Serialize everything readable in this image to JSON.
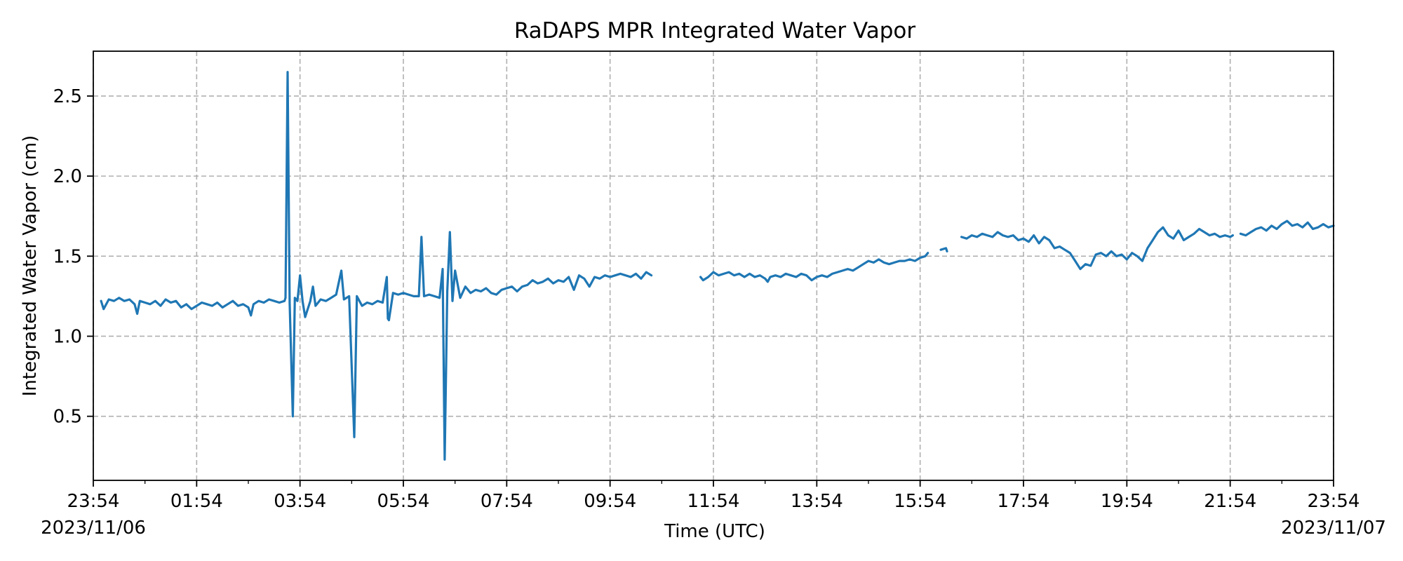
{
  "chart_data": {
    "type": "line",
    "title": "RaDAPS MPR Integrated Water Vapor",
    "xlabel": "Time (UTC)",
    "ylabel": "Integrated Water Vapor (cm)",
    "x_unit": "hours",
    "xlim": [
      0,
      24
    ],
    "ylim": [
      0.1,
      2.78
    ],
    "x_ticks": [
      {
        "value": 0,
        "label": "23:54",
        "sublabel": "2023/11/06"
      },
      {
        "value": 2,
        "label": "01:54"
      },
      {
        "value": 4,
        "label": "03:54"
      },
      {
        "value": 6,
        "label": "05:54"
      },
      {
        "value": 8,
        "label": "07:54"
      },
      {
        "value": 10,
        "label": "09:54"
      },
      {
        "value": 12,
        "label": "11:54"
      },
      {
        "value": 14,
        "label": "13:54"
      },
      {
        "value": 16,
        "label": "15:54"
      },
      {
        "value": 18,
        "label": "17:54"
      },
      {
        "value": 20,
        "label": "19:54"
      },
      {
        "value": 22,
        "label": "21:54"
      },
      {
        "value": 24,
        "label": "23:54",
        "sublabel": "2023/11/07"
      }
    ],
    "x_minor_ticks": [
      1,
      3,
      5,
      7,
      9,
      11,
      13,
      15,
      17,
      19,
      21,
      23
    ],
    "y_ticks": [
      {
        "value": 0.5,
        "label": "0.5"
      },
      {
        "value": 1.0,
        "label": "1.0"
      },
      {
        "value": 1.5,
        "label": "1.5"
      },
      {
        "value": 2.0,
        "label": "2.0"
      },
      {
        "value": 2.5,
        "label": "2.5"
      }
    ],
    "grid": true,
    "series": [
      {
        "color": "#1f77b4",
        "segments": [
          [
            [
              0.15,
              1.22
            ],
            [
              0.2,
              1.17
            ],
            [
              0.3,
              1.23
            ],
            [
              0.4,
              1.22
            ],
            [
              0.5,
              1.24
            ],
            [
              0.6,
              1.22
            ],
            [
              0.7,
              1.23
            ],
            [
              0.8,
              1.2
            ],
            [
              0.85,
              1.14
            ],
            [
              0.9,
              1.22
            ],
            [
              1.0,
              1.21
            ],
            [
              1.1,
              1.2
            ],
            [
              1.2,
              1.22
            ],
            [
              1.3,
              1.19
            ],
            [
              1.4,
              1.23
            ],
            [
              1.5,
              1.21
            ],
            [
              1.6,
              1.22
            ],
            [
              1.7,
              1.18
            ],
            [
              1.8,
              1.2
            ],
            [
              1.9,
              1.17
            ],
            [
              2.0,
              1.19
            ],
            [
              2.1,
              1.21
            ],
            [
              2.2,
              1.2
            ],
            [
              2.3,
              1.19
            ],
            [
              2.4,
              1.21
            ],
            [
              2.5,
              1.18
            ],
            [
              2.6,
              1.2
            ],
            [
              2.7,
              1.22
            ],
            [
              2.8,
              1.19
            ],
            [
              2.9,
              1.2
            ],
            [
              3.0,
              1.18
            ],
            [
              3.05,
              1.13
            ],
            [
              3.1,
              1.2
            ],
            [
              3.2,
              1.22
            ],
            [
              3.3,
              1.21
            ],
            [
              3.4,
              1.23
            ],
            [
              3.5,
              1.22
            ],
            [
              3.6,
              1.21
            ],
            [
              3.7,
              1.22
            ],
            [
              3.72,
              1.24
            ],
            [
              3.76,
              2.65
            ],
            [
              3.8,
              1.21
            ],
            [
              3.86,
              0.5
            ],
            [
              3.9,
              1.24
            ],
            [
              3.95,
              1.22
            ],
            [
              4.0,
              1.38
            ],
            [
              4.05,
              1.22
            ],
            [
              4.1,
              1.12
            ],
            [
              4.2,
              1.22
            ],
            [
              4.25,
              1.31
            ],
            [
              4.3,
              1.19
            ],
            [
              4.4,
              1.23
            ],
            [
              4.5,
              1.22
            ],
            [
              4.6,
              1.24
            ],
            [
              4.7,
              1.26
            ],
            [
              4.8,
              1.41
            ],
            [
              4.85,
              1.23
            ],
            [
              4.95,
              1.25
            ],
            [
              5.05,
              0.37
            ],
            [
              5.1,
              1.25
            ],
            [
              5.2,
              1.19
            ],
            [
              5.3,
              1.21
            ],
            [
              5.4,
              1.2
            ],
            [
              5.5,
              1.22
            ],
            [
              5.6,
              1.21
            ],
            [
              5.68,
              1.37
            ],
            [
              5.7,
              1.11
            ],
            [
              5.72,
              1.1
            ],
            [
              5.8,
              1.27
            ],
            [
              5.9,
              1.26
            ],
            [
              6.0,
              1.27
            ],
            [
              6.1,
              1.26
            ],
            [
              6.2,
              1.25
            ],
            [
              6.3,
              1.25
            ],
            [
              6.35,
              1.62
            ],
            [
              6.4,
              1.25
            ],
            [
              6.5,
              1.26
            ],
            [
              6.6,
              1.25
            ],
            [
              6.7,
              1.24
            ],
            [
              6.76,
              1.42
            ],
            [
              6.8,
              0.23
            ],
            [
              6.85,
              1.28
            ],
            [
              6.9,
              1.65
            ],
            [
              6.95,
              1.22
            ],
            [
              7.0,
              1.41
            ],
            [
              7.1,
              1.24
            ],
            [
              7.2,
              1.31
            ],
            [
              7.3,
              1.27
            ],
            [
              7.4,
              1.29
            ],
            [
              7.5,
              1.28
            ],
            [
              7.6,
              1.3
            ],
            [
              7.7,
              1.27
            ],
            [
              7.8,
              1.26
            ],
            [
              7.9,
              1.29
            ],
            [
              8.0,
              1.3
            ],
            [
              8.1,
              1.31
            ],
            [
              8.2,
              1.28
            ],
            [
              8.3,
              1.31
            ],
            [
              8.4,
              1.32
            ],
            [
              8.5,
              1.35
            ],
            [
              8.6,
              1.33
            ],
            [
              8.7,
              1.34
            ],
            [
              8.8,
              1.36
            ],
            [
              8.9,
              1.33
            ],
            [
              9.0,
              1.35
            ],
            [
              9.1,
              1.34
            ],
            [
              9.2,
              1.37
            ],
            [
              9.3,
              1.29
            ],
            [
              9.4,
              1.38
            ],
            [
              9.5,
              1.36
            ],
            [
              9.6,
              1.31
            ],
            [
              9.7,
              1.37
            ],
            [
              9.8,
              1.36
            ],
            [
              9.9,
              1.38
            ],
            [
              10.0,
              1.37
            ],
            [
              10.1,
              1.38
            ],
            [
              10.2,
              1.39
            ],
            [
              10.3,
              1.38
            ],
            [
              10.4,
              1.37
            ],
            [
              10.5,
              1.39
            ],
            [
              10.6,
              1.36
            ],
            [
              10.7,
              1.4
            ],
            [
              10.8,
              1.38
            ]
          ],
          [
            [
              11.75,
              1.37
            ],
            [
              11.8,
              1.35
            ],
            [
              11.9,
              1.37
            ],
            [
              12.0,
              1.4
            ],
            [
              12.1,
              1.38
            ],
            [
              12.2,
              1.39
            ],
            [
              12.3,
              1.4
            ],
            [
              12.4,
              1.38
            ],
            [
              12.5,
              1.39
            ],
            [
              12.6,
              1.37
            ],
            [
              12.7,
              1.39
            ],
            [
              12.8,
              1.37
            ],
            [
              12.9,
              1.38
            ],
            [
              13.0,
              1.36
            ],
            [
              13.05,
              1.34
            ],
            [
              13.1,
              1.37
            ],
            [
              13.2,
              1.38
            ],
            [
              13.3,
              1.37
            ],
            [
              13.4,
              1.39
            ],
            [
              13.5,
              1.38
            ],
            [
              13.6,
              1.37
            ],
            [
              13.7,
              1.39
            ],
            [
              13.8,
              1.38
            ],
            [
              13.9,
              1.35
            ],
            [
              14.0,
              1.37
            ],
            [
              14.1,
              1.38
            ],
            [
              14.2,
              1.37
            ],
            [
              14.3,
              1.39
            ],
            [
              14.4,
              1.4
            ],
            [
              14.5,
              1.41
            ],
            [
              14.6,
              1.42
            ],
            [
              14.7,
              1.41
            ],
            [
              14.8,
              1.43
            ],
            [
              14.9,
              1.45
            ],
            [
              15.0,
              1.47
            ],
            [
              15.1,
              1.46
            ],
            [
              15.2,
              1.48
            ],
            [
              15.3,
              1.46
            ],
            [
              15.4,
              1.45
            ],
            [
              15.5,
              1.46
            ],
            [
              15.6,
              1.47
            ],
            [
              15.7,
              1.47
            ],
            [
              15.8,
              1.48
            ],
            [
              15.9,
              1.47
            ],
            [
              16.0,
              1.49
            ],
            [
              16.1,
              1.5
            ],
            [
              16.15,
              1.52
            ]
          ],
          [
            [
              16.4,
              1.54
            ],
            [
              16.5,
              1.55
            ],
            [
              16.52,
              1.53
            ]
          ],
          [
            [
              16.8,
              1.62
            ],
            [
              16.9,
              1.61
            ],
            [
              17.0,
              1.63
            ],
            [
              17.1,
              1.62
            ],
            [
              17.2,
              1.64
            ],
            [
              17.3,
              1.63
            ],
            [
              17.4,
              1.62
            ],
            [
              17.5,
              1.65
            ],
            [
              17.6,
              1.63
            ],
            [
              17.7,
              1.62
            ],
            [
              17.8,
              1.63
            ],
            [
              17.9,
              1.6
            ],
            [
              18.0,
              1.61
            ],
            [
              18.1,
              1.59
            ],
            [
              18.2,
              1.63
            ],
            [
              18.3,
              1.58
            ],
            [
              18.4,
              1.62
            ],
            [
              18.5,
              1.6
            ],
            [
              18.6,
              1.55
            ],
            [
              18.7,
              1.56
            ],
            [
              18.8,
              1.54
            ],
            [
              18.9,
              1.52
            ],
            [
              19.0,
              1.47
            ],
            [
              19.1,
              1.42
            ],
            [
              19.2,
              1.45
            ],
            [
              19.3,
              1.44
            ],
            [
              19.4,
              1.51
            ],
            [
              19.5,
              1.52
            ],
            [
              19.6,
              1.5
            ],
            [
              19.7,
              1.53
            ],
            [
              19.8,
              1.5
            ],
            [
              19.9,
              1.51
            ],
            [
              20.0,
              1.48
            ],
            [
              20.1,
              1.52
            ],
            [
              20.2,
              1.5
            ],
            [
              20.3,
              1.47
            ],
            [
              20.4,
              1.55
            ],
            [
              20.5,
              1.6
            ],
            [
              20.6,
              1.65
            ],
            [
              20.7,
              1.68
            ],
            [
              20.8,
              1.63
            ],
            [
              20.9,
              1.61
            ],
            [
              21.0,
              1.66
            ],
            [
              21.1,
              1.6
            ],
            [
              21.2,
              1.62
            ],
            [
              21.3,
              1.64
            ],
            [
              21.4,
              1.67
            ],
            [
              21.5,
              1.65
            ],
            [
              21.6,
              1.63
            ],
            [
              21.7,
              1.64
            ],
            [
              21.8,
              1.62
            ],
            [
              21.9,
              1.63
            ],
            [
              22.0,
              1.62
            ],
            [
              22.05,
              1.63
            ]
          ],
          [
            [
              22.2,
              1.64
            ],
            [
              22.3,
              1.63
            ],
            [
              22.4,
              1.65
            ],
            [
              22.5,
              1.67
            ],
            [
              22.6,
              1.68
            ],
            [
              22.7,
              1.66
            ],
            [
              22.8,
              1.69
            ],
            [
              22.9,
              1.67
            ],
            [
              23.0,
              1.7
            ],
            [
              23.1,
              1.72
            ],
            [
              23.2,
              1.69
            ],
            [
              23.3,
              1.7
            ],
            [
              23.4,
              1.68
            ],
            [
              23.5,
              1.71
            ],
            [
              23.6,
              1.67
            ],
            [
              23.7,
              1.68
            ],
            [
              23.8,
              1.7
            ],
            [
              23.9,
              1.68
            ],
            [
              24.0,
              1.69
            ]
          ]
        ]
      }
    ]
  }
}
